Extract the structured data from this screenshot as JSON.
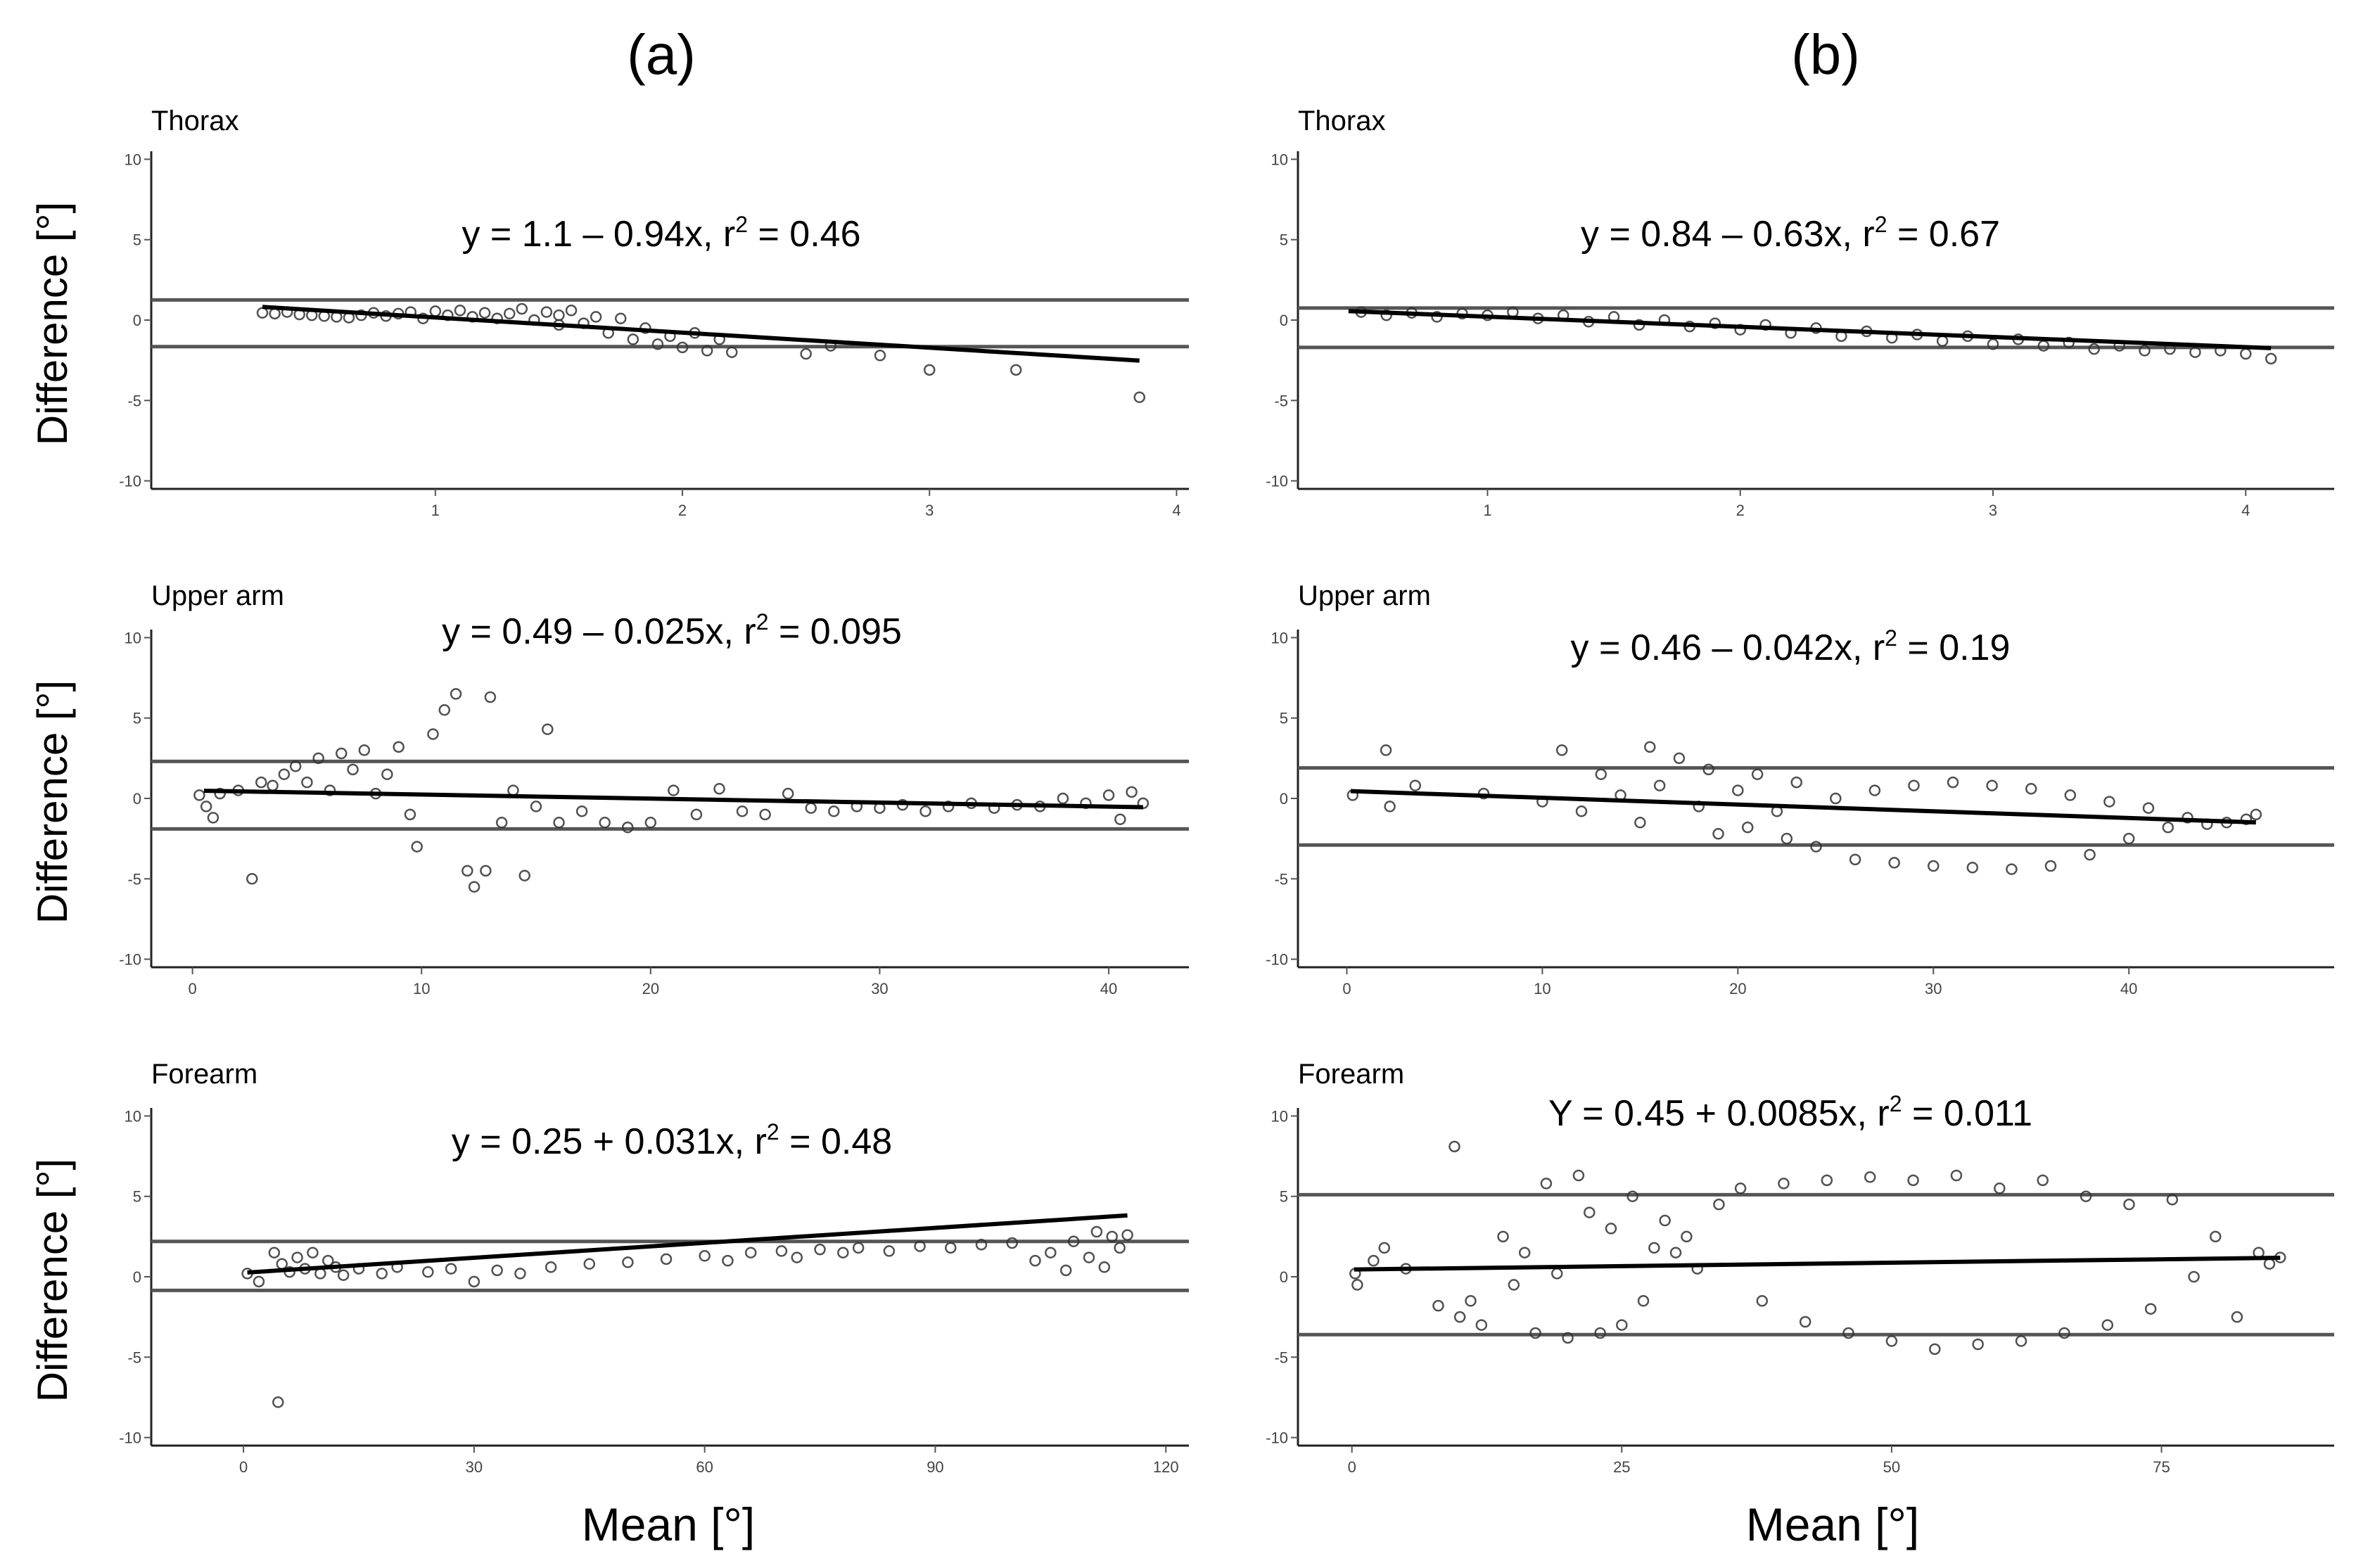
{
  "figure": {
    "column_titles": [
      "(a)",
      "(b)"
    ],
    "y_axis_label": "Difference [°]",
    "x_axis_label": "Mean [°]"
  },
  "chart_data": [
    {
      "type": "scatter",
      "column": "(a)",
      "title": "Thorax",
      "equation": {
        "text": "y = 1.1 – 0.94x,  r",
        "sup": "2",
        "tail": " = 0.46"
      },
      "xlim": [
        -0.15,
        4.05
      ],
      "ylim": [
        -10.5,
        10.5
      ],
      "xticks": [
        1,
        2,
        3,
        4
      ],
      "yticks": [
        -10,
        -5,
        0,
        5,
        10
      ],
      "regression": {
        "intercept": 1.1,
        "slope": -0.94,
        "x_range": [
          0.3,
          3.85
        ]
      },
      "limits_of_agreement": [
        1.25,
        -1.65
      ],
      "points": [
        [
          0.3,
          0.45
        ],
        [
          0.35,
          0.4
        ],
        [
          0.4,
          0.5
        ],
        [
          0.45,
          0.35
        ],
        [
          0.5,
          0.3
        ],
        [
          0.55,
          0.25
        ],
        [
          0.6,
          0.2
        ],
        [
          0.65,
          0.15
        ],
        [
          0.7,
          0.3
        ],
        [
          0.75,
          0.45
        ],
        [
          0.8,
          0.25
        ],
        [
          0.85,
          0.4
        ],
        [
          0.9,
          0.5
        ],
        [
          0.95,
          0.1
        ],
        [
          1.0,
          0.55
        ],
        [
          1.05,
          0.3
        ],
        [
          1.1,
          0.6
        ],
        [
          1.15,
          0.2
        ],
        [
          1.2,
          0.45
        ],
        [
          1.25,
          0.1
        ],
        [
          1.3,
          0.4
        ],
        [
          1.35,
          0.7
        ],
        [
          1.4,
          0.0
        ],
        [
          1.45,
          0.5
        ],
        [
          1.5,
          0.3
        ],
        [
          1.5,
          -0.3
        ],
        [
          1.55,
          0.6
        ],
        [
          1.6,
          -0.2
        ],
        [
          1.65,
          0.2
        ],
        [
          1.7,
          -0.8
        ],
        [
          1.75,
          0.1
        ],
        [
          1.8,
          -1.2
        ],
        [
          1.85,
          -0.5
        ],
        [
          1.9,
          -1.5
        ],
        [
          1.95,
          -1.0
        ],
        [
          2.0,
          -1.7
        ],
        [
          2.05,
          -0.8
        ],
        [
          2.1,
          -1.9
        ],
        [
          2.15,
          -1.2
        ],
        [
          2.2,
          -2.0
        ],
        [
          2.5,
          -2.1
        ],
        [
          2.6,
          -1.6
        ],
        [
          2.8,
          -2.2
        ],
        [
          3.0,
          -3.1
        ],
        [
          3.35,
          -3.1
        ],
        [
          3.85,
          -4.8
        ]
      ]
    },
    {
      "type": "scatter",
      "column": "(b)",
      "title": "Thorax",
      "equation": {
        "text": "y = 0.84 – 0.63x,  r",
        "sup": "2",
        "tail": " = 0.67"
      },
      "xlim": [
        0.25,
        4.35
      ],
      "ylim": [
        -10.5,
        10.5
      ],
      "xticks": [
        1,
        2,
        3,
        4
      ],
      "yticks": [
        -10,
        -5,
        0,
        5,
        10
      ],
      "regression": {
        "intercept": 0.84,
        "slope": -0.63,
        "x_range": [
          0.45,
          4.1
        ]
      },
      "limits_of_agreement": [
        0.75,
        -1.7
      ],
      "points": [
        [
          0.5,
          0.5
        ],
        [
          0.6,
          0.3
        ],
        [
          0.7,
          0.45
        ],
        [
          0.8,
          0.2
        ],
        [
          0.9,
          0.4
        ],
        [
          1.0,
          0.3
        ],
        [
          1.1,
          0.5
        ],
        [
          1.2,
          0.1
        ],
        [
          1.3,
          0.3
        ],
        [
          1.4,
          -0.1
        ],
        [
          1.5,
          0.2
        ],
        [
          1.6,
          -0.3
        ],
        [
          1.7,
          0.0
        ],
        [
          1.8,
          -0.4
        ],
        [
          1.9,
          -0.2
        ],
        [
          2.0,
          -0.6
        ],
        [
          2.1,
          -0.3
        ],
        [
          2.2,
          -0.8
        ],
        [
          2.3,
          -0.5
        ],
        [
          2.4,
          -1.0
        ],
        [
          2.5,
          -0.7
        ],
        [
          2.6,
          -1.1
        ],
        [
          2.7,
          -0.9
        ],
        [
          2.8,
          -1.3
        ],
        [
          2.9,
          -1.0
        ],
        [
          3.0,
          -1.5
        ],
        [
          3.1,
          -1.2
        ],
        [
          3.2,
          -1.6
        ],
        [
          3.3,
          -1.4
        ],
        [
          3.4,
          -1.8
        ],
        [
          3.5,
          -1.6
        ],
        [
          3.6,
          -1.9
        ],
        [
          3.7,
          -1.8
        ],
        [
          3.8,
          -2.0
        ],
        [
          3.9,
          -1.9
        ],
        [
          4.0,
          -2.1
        ],
        [
          4.1,
          -2.4
        ]
      ]
    },
    {
      "type": "scatter",
      "column": "(a)",
      "title": "Upper arm",
      "equation": {
        "text": "y = 0.49 – 0.025x,  r",
        "sup": "2",
        "tail": " = 0.095"
      },
      "xlim": [
        -1.8,
        43.5
      ],
      "ylim": [
        -10.5,
        10.5
      ],
      "xticks": [
        0,
        10,
        20,
        30,
        40
      ],
      "yticks": [
        -10,
        -5,
        0,
        5,
        10
      ],
      "regression": {
        "intercept": 0.49,
        "slope": -0.025,
        "x_range": [
          0.5,
          41.5
        ]
      },
      "limits_of_agreement": [
        2.3,
        -1.9
      ],
      "points": [
        [
          0.3,
          0.2
        ],
        [
          0.6,
          -0.5
        ],
        [
          0.9,
          -1.2
        ],
        [
          1.2,
          0.3
        ],
        [
          2.0,
          0.5
        ],
        [
          2.6,
          -5.0
        ],
        [
          3.0,
          1.0
        ],
        [
          3.5,
          0.8
        ],
        [
          4.0,
          1.5
        ],
        [
          4.5,
          2.0
        ],
        [
          5.0,
          1.0
        ],
        [
          5.5,
          2.5
        ],
        [
          6.0,
          0.5
        ],
        [
          6.5,
          2.8
        ],
        [
          7.0,
          1.8
        ],
        [
          7.5,
          3.0
        ],
        [
          8.0,
          0.3
        ],
        [
          8.5,
          1.5
        ],
        [
          9.0,
          3.2
        ],
        [
          9.5,
          -1.0
        ],
        [
          9.8,
          -3.0
        ],
        [
          10.5,
          4.0
        ],
        [
          11.0,
          5.5
        ],
        [
          11.5,
          6.5
        ],
        [
          12.0,
          -4.5
        ],
        [
          12.3,
          -5.5
        ],
        [
          12.8,
          -4.5
        ],
        [
          13.0,
          6.3
        ],
        [
          13.5,
          -1.5
        ],
        [
          14.0,
          0.5
        ],
        [
          14.5,
          -4.8
        ],
        [
          15.0,
          -0.5
        ],
        [
          15.5,
          4.3
        ],
        [
          16.0,
          -1.5
        ],
        [
          17.0,
          -0.8
        ],
        [
          18.0,
          -1.5
        ],
        [
          19.0,
          -1.8
        ],
        [
          20.0,
          -1.5
        ],
        [
          21.0,
          0.5
        ],
        [
          22.0,
          -1.0
        ],
        [
          23.0,
          0.6
        ],
        [
          24.0,
          -0.8
        ],
        [
          25.0,
          -1.0
        ],
        [
          26.0,
          0.3
        ],
        [
          27.0,
          -0.6
        ],
        [
          28.0,
          -0.8
        ],
        [
          29.0,
          -0.5
        ],
        [
          30.0,
          -0.6
        ],
        [
          31.0,
          -0.4
        ],
        [
          32.0,
          -0.8
        ],
        [
          33.0,
          -0.5
        ],
        [
          34.0,
          -0.3
        ],
        [
          35.0,
          -0.6
        ],
        [
          36.0,
          -0.4
        ],
        [
          37.0,
          -0.5
        ],
        [
          38.0,
          0.0
        ],
        [
          39.0,
          -0.3
        ],
        [
          40.0,
          0.2
        ],
        [
          40.5,
          -1.3
        ],
        [
          41.0,
          0.4
        ],
        [
          41.5,
          -0.3
        ]
      ]
    },
    {
      "type": "scatter",
      "column": "(b)",
      "title": "Upper arm",
      "equation": {
        "text": "y = 0.46 – 0.042x,  r",
        "sup": "2",
        "tail": " = 0.19"
      },
      "xlim": [
        -2.5,
        50.5
      ],
      "ylim": [
        -10.5,
        10.5
      ],
      "xticks": [
        0,
        10,
        20,
        30,
        40
      ],
      "yticks": [
        -10,
        -5,
        0,
        5,
        10
      ],
      "regression": {
        "intercept": 0.46,
        "slope": -0.042,
        "x_range": [
          0.2,
          46.5
        ]
      },
      "limits_of_agreement": [
        1.9,
        -2.9
      ],
      "points": [
        [
          0.3,
          0.2
        ],
        [
          2.0,
          3.0
        ],
        [
          2.2,
          -0.5
        ],
        [
          3.5,
          0.8
        ],
        [
          7.0,
          0.3
        ],
        [
          10.0,
          -0.2
        ],
        [
          11.0,
          3.0
        ],
        [
          12.0,
          -0.8
        ],
        [
          13.0,
          1.5
        ],
        [
          14.0,
          0.2
        ],
        [
          15.0,
          -1.5
        ],
        [
          15.5,
          3.2
        ],
        [
          16.0,
          0.8
        ],
        [
          17.0,
          2.5
        ],
        [
          18.0,
          -0.5
        ],
        [
          18.5,
          1.8
        ],
        [
          19.0,
          -2.2
        ],
        [
          20.0,
          0.5
        ],
        [
          20.5,
          -1.8
        ],
        [
          21.0,
          1.5
        ],
        [
          22.0,
          -0.8
        ],
        [
          22.5,
          -2.5
        ],
        [
          23.0,
          1.0
        ],
        [
          24.0,
          -3.0
        ],
        [
          25.0,
          0.0
        ],
        [
          26.0,
          -3.8
        ],
        [
          27.0,
          0.5
        ],
        [
          28.0,
          -4.0
        ],
        [
          29.0,
          0.8
        ],
        [
          30.0,
          -4.2
        ],
        [
          31.0,
          1.0
        ],
        [
          32.0,
          -4.3
        ],
        [
          33.0,
          0.8
        ],
        [
          34.0,
          -4.4
        ],
        [
          35.0,
          0.6
        ],
        [
          36.0,
          -4.2
        ],
        [
          37.0,
          0.2
        ],
        [
          38.0,
          -3.5
        ],
        [
          39.0,
          -0.2
        ],
        [
          40.0,
          -2.5
        ],
        [
          41.0,
          -0.6
        ],
        [
          42.0,
          -1.8
        ],
        [
          43.0,
          -1.2
        ],
        [
          44.0,
          -1.6
        ],
        [
          45.0,
          -1.5
        ],
        [
          46.0,
          -1.3
        ],
        [
          46.5,
          -1.0
        ]
      ]
    },
    {
      "type": "scatter",
      "column": "(a)",
      "title": "Forearm",
      "equation": {
        "text": "y = 0.25 + 0.031x,  r",
        "sup": "2",
        "tail": " = 0.48"
      },
      "xlim": [
        -12.0,
        123.0
      ],
      "ylim": [
        -10.5,
        10.5
      ],
      "xticks": [
        0,
        30,
        60,
        90,
        120
      ],
      "yticks": [
        -10,
        -5,
        0,
        5,
        10
      ],
      "regression": {
        "intercept": 0.25,
        "slope": 0.031,
        "x_range": [
          0.5,
          115.0
        ]
      },
      "limits_of_agreement": [
        2.2,
        -0.85
      ],
      "points": [
        [
          0.5,
          0.2
        ],
        [
          2.0,
          -0.3
        ],
        [
          4.0,
          1.5
        ],
        [
          4.5,
          -7.8
        ],
        [
          5.0,
          0.8
        ],
        [
          6.0,
          0.3
        ],
        [
          7.0,
          1.2
        ],
        [
          8.0,
          0.5
        ],
        [
          9.0,
          1.5
        ],
        [
          10.0,
          0.2
        ],
        [
          11.0,
          1.0
        ],
        [
          12.0,
          0.6
        ],
        [
          13.0,
          0.1
        ],
        [
          15.0,
          0.5
        ],
        [
          18.0,
          0.2
        ],
        [
          20.0,
          0.6
        ],
        [
          24.0,
          0.3
        ],
        [
          27.0,
          0.5
        ],
        [
          30.0,
          -0.3
        ],
        [
          33.0,
          0.4
        ],
        [
          36.0,
          0.2
        ],
        [
          40.0,
          0.6
        ],
        [
          45.0,
          0.8
        ],
        [
          50.0,
          0.9
        ],
        [
          55.0,
          1.1
        ],
        [
          60.0,
          1.3
        ],
        [
          63.0,
          1.0
        ],
        [
          66.0,
          1.5
        ],
        [
          70.0,
          1.6
        ],
        [
          72.0,
          1.2
        ],
        [
          75.0,
          1.7
        ],
        [
          78.0,
          1.5
        ],
        [
          80.0,
          1.8
        ],
        [
          84.0,
          1.6
        ],
        [
          88.0,
          1.9
        ],
        [
          92.0,
          1.8
        ],
        [
          96.0,
          2.0
        ],
        [
          100.0,
          2.1
        ],
        [
          103.0,
          1.0
        ],
        [
          105.0,
          1.5
        ],
        [
          107.0,
          0.4
        ],
        [
          108.0,
          2.2
        ],
        [
          110.0,
          1.2
        ],
        [
          111.0,
          2.8
        ],
        [
          112.0,
          0.6
        ],
        [
          113.0,
          2.5
        ],
        [
          114.0,
          1.8
        ],
        [
          115.0,
          2.6
        ]
      ]
    },
    {
      "type": "scatter",
      "column": "(b)",
      "title": "Forearm",
      "equation": {
        "text": "Y = 0.45 + 0.0085x,  r",
        "sup": "2",
        "tail": " = 0.011"
      },
      "xlim": [
        -5.0,
        91.0
      ],
      "ylim": [
        -10.5,
        10.5
      ],
      "xticks": [
        0,
        25,
        50,
        75
      ],
      "yticks": [
        -10,
        -5,
        0,
        5,
        10
      ],
      "regression": {
        "intercept": 0.45,
        "slope": 0.0085,
        "x_range": [
          0.2,
          86.0
        ]
      },
      "limits_of_agreement": [
        5.1,
        -3.6
      ],
      "points": [
        [
          0.3,
          0.2
        ],
        [
          0.5,
          -0.5
        ],
        [
          2.0,
          1.0
        ],
        [
          3.0,
          1.8
        ],
        [
          5.0,
          0.5
        ],
        [
          8.0,
          -1.8
        ],
        [
          9.5,
          8.1
        ],
        [
          10.0,
          -2.5
        ],
        [
          11.0,
          -1.5
        ],
        [
          12.0,
          -3.0
        ],
        [
          14.0,
          2.5
        ],
        [
          15.0,
          -0.5
        ],
        [
          16.0,
          1.5
        ],
        [
          17.0,
          -3.5
        ],
        [
          18.0,
          5.8
        ],
        [
          19.0,
          0.2
        ],
        [
          20.0,
          -3.8
        ],
        [
          21.0,
          6.3
        ],
        [
          22.0,
          4.0
        ],
        [
          23.0,
          -3.5
        ],
        [
          24.0,
          3.0
        ],
        [
          25.0,
          -3.0
        ],
        [
          26.0,
          5.0
        ],
        [
          27.0,
          -1.5
        ],
        [
          28.0,
          1.8
        ],
        [
          29.0,
          3.5
        ],
        [
          30.0,
          1.5
        ],
        [
          31.0,
          2.5
        ],
        [
          32.0,
          0.5
        ],
        [
          34.0,
          4.5
        ],
        [
          36.0,
          5.5
        ],
        [
          38.0,
          -1.5
        ],
        [
          40.0,
          5.8
        ],
        [
          42.0,
          -2.8
        ],
        [
          44.0,
          6.0
        ],
        [
          46.0,
          -3.5
        ],
        [
          48.0,
          6.2
        ],
        [
          50.0,
          -4.0
        ],
        [
          52.0,
          6.0
        ],
        [
          54.0,
          -4.5
        ],
        [
          56.0,
          6.3
        ],
        [
          58.0,
          -4.2
        ],
        [
          60.0,
          5.5
        ],
        [
          62.0,
          -4.0
        ],
        [
          64.0,
          6.0
        ],
        [
          66.0,
          -3.5
        ],
        [
          68.0,
          5.0
        ],
        [
          70.0,
          -3.0
        ],
        [
          72.0,
          4.5
        ],
        [
          74.0,
          -2.0
        ],
        [
          76.0,
          4.8
        ],
        [
          78.0,
          0.0
        ],
        [
          80.0,
          2.5
        ],
        [
          82.0,
          -2.5
        ],
        [
          84.0,
          1.5
        ],
        [
          85.0,
          0.8
        ],
        [
          86.0,
          1.2
        ]
      ]
    }
  ]
}
